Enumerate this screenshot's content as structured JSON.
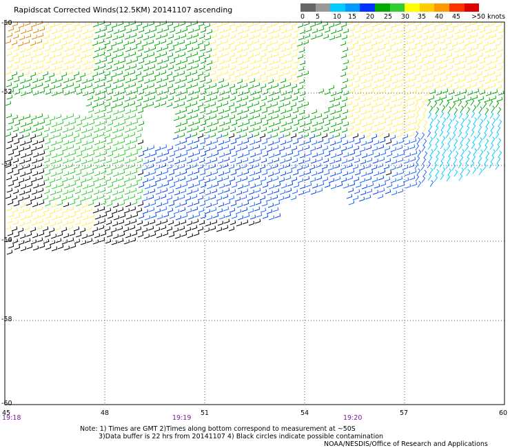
{
  "title": "Rapidscat Corrected Winds(12.5KM) 20141107 ascending",
  "scale": {
    "colors": [
      "#666666",
      "#999999",
      "#00ccff",
      "#0099ff",
      "#0033ff",
      "#00aa00",
      "#33cc33",
      "#ffff00",
      "#ffcc00",
      "#ff9900",
      "#ff3300",
      "#dd0000",
      "#663300",
      "#996633",
      "#9900cc",
      "#660099",
      "#330066",
      "#000000"
    ],
    "labels": [
      "0",
      "5",
      "10",
      "15",
      "20",
      "25",
      "30",
      "35",
      "40",
      "45",
      ">50 knots"
    ]
  },
  "axes": {
    "lat_labels": [
      "-50",
      "-52",
      "-54",
      "-56",
      "-58",
      "-60"
    ],
    "lon_labels": [
      "45",
      "48",
      "51",
      "54",
      "57",
      "60"
    ],
    "time_labels": [
      "19:18",
      "19:19",
      "19:20"
    ]
  },
  "wind_colors": {
    "calm": "#000000",
    "light_blue": "#00ccff",
    "blue": "#0044ee",
    "mid_blue": "#2266ff",
    "green": "#00aa00",
    "light_green": "#33cc33",
    "yellow": "#ffee55",
    "orange": "#e08800"
  },
  "notes": {
    "line1": "Note: 1) Times are GMT 2)Times along bottom correspond to measurement at ~50S",
    "line2": "3)Data buffer is 22 hrs from 20141107 4) Black circles indicate possible contamination",
    "line3": "NOAA/NESDIS/Office of Research and Applications"
  }
}
